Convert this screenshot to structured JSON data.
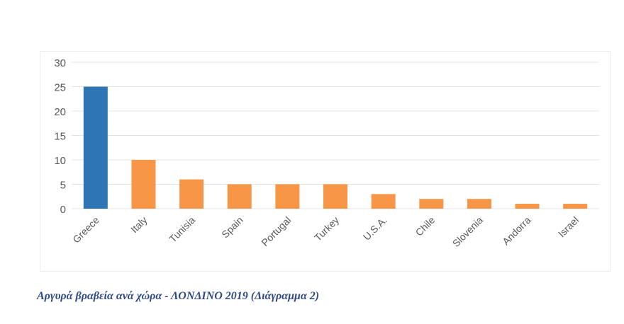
{
  "chart_data": {
    "type": "bar",
    "title": "",
    "xlabel": "",
    "ylabel": "",
    "categories": [
      "Greece",
      "Italy",
      "Tunisia",
      "Spain",
      "Portugal",
      "Turkey",
      "U.S.A.",
      "Chile",
      "Slovenia",
      "Andorra",
      "Israel"
    ],
    "values": [
      25,
      10,
      6,
      5,
      5,
      5,
      3,
      2,
      2,
      1,
      1
    ],
    "bar_colors": [
      "#2e75b6",
      "#f79646",
      "#f79646",
      "#f79646",
      "#f79646",
      "#f79646",
      "#f79646",
      "#f79646",
      "#f79646",
      "#f79646",
      "#f79646"
    ],
    "ylim": [
      0,
      30
    ],
    "yticks": [
      0,
      5,
      10,
      15,
      20,
      25,
      30
    ],
    "grid": true,
    "legend": "none"
  },
  "caption": "Αργυρά βραβεία ανά χώρα - ΛΟΝΔΙΝΟ 2019 (Διάγραμμα 2)"
}
